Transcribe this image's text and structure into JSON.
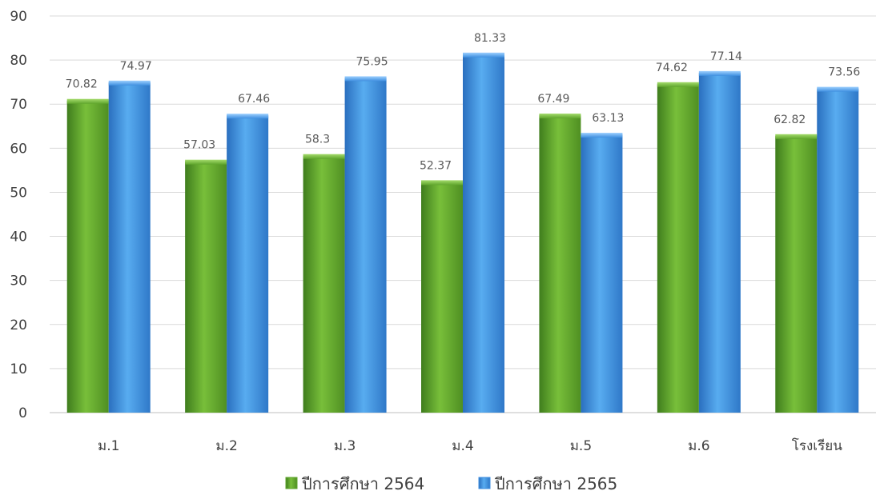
{
  "chart_data": {
    "type": "bar",
    "title": "",
    "xlabel": "",
    "ylabel": "",
    "categories": [
      "ม.1",
      "ม.2",
      "ม.3",
      "ม.4",
      "ม.5",
      "ม.6",
      "โรงเรียน"
    ],
    "series": [
      {
        "name": "ปีการศึกษา 2564",
        "color": "#5fa52c",
        "values": [
          70.82,
          57.03,
          58.3,
          52.37,
          67.49,
          74.62,
          62.82
        ]
      },
      {
        "name": "ปีการศึกษา 2565",
        "color": "#3f8fe0",
        "values": [
          74.97,
          67.46,
          75.95,
          81.33,
          63.13,
          77.14,
          73.56
        ]
      }
    ],
    "ylim": [
      0,
      90
    ],
    "yticks": [
      0,
      10,
      20,
      30,
      40,
      50,
      60,
      70,
      80,
      90
    ],
    "grid": true,
    "legend_position": "bottom",
    "data_labels": true
  }
}
